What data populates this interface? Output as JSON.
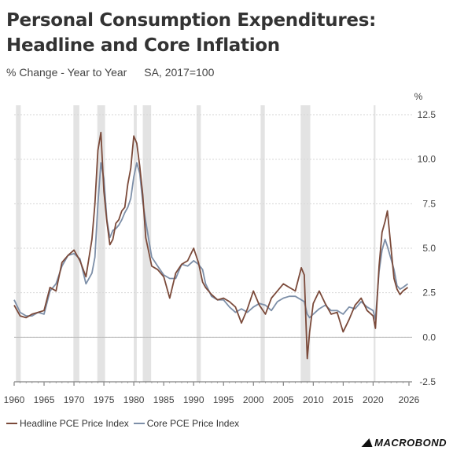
{
  "title": "Personal Consumption Expenditures: Headline and Core Inflation",
  "subtitle": "% Change - Year to Year",
  "subtitle_note": "SA, 2017=100",
  "source_brand": "MACROBOND",
  "chart_data": {
    "type": "line",
    "ylabel": "%",
    "xlim": [
      1960,
      2026
    ],
    "ylim": [
      -2.5,
      12.5
    ],
    "yticks": [
      "-2.5",
      "0.0",
      "2.5",
      "5.0",
      "7.5",
      "10.0",
      "12.5"
    ],
    "xticks": [
      "1960",
      "1965",
      "1970",
      "1975",
      "1980",
      "1985",
      "1990",
      "1995",
      "2000",
      "2005",
      "2010",
      "2015",
      "2020",
      "2026"
    ],
    "recessions": [
      [
        1960.3,
        1961.1
      ],
      [
        1969.9,
        1970.9
      ],
      [
        1973.9,
        1975.2
      ],
      [
        1980.0,
        1980.5
      ],
      [
        1981.5,
        1982.9
      ],
      [
        1990.5,
        1991.2
      ],
      [
        2001.2,
        2001.9
      ],
      [
        2007.9,
        2009.5
      ],
      [
        2020.1,
        2020.4
      ]
    ],
    "series": [
      {
        "name": "Headline PCE Price Index",
        "color": "#7b4a3a",
        "x": [
          1960,
          1961,
          1962,
          1963,
          1964,
          1965,
          1966,
          1967,
          1968,
          1969,
          1970,
          1971,
          1972,
          1973,
          1973.5,
          1974,
          1974.5,
          1975,
          1975.5,
          1976,
          1976.5,
          1977,
          1977.5,
          1978,
          1978.5,
          1979,
          1979.5,
          1980,
          1980.5,
          1981,
          1981.5,
          1982,
          1982.5,
          1983,
          1984,
          1985,
          1986,
          1987,
          1988,
          1989,
          1990,
          1990.8,
          1991.5,
          1992,
          1993,
          1994,
          1995,
          1996,
          1997,
          1998,
          1999,
          2000,
          2001,
          2002,
          2003,
          2004,
          2005,
          2006,
          2007,
          2008,
          2008.5,
          2009,
          2009.4,
          2010,
          2011,
          2012,
          2013,
          2014,
          2015,
          2016,
          2017,
          2018,
          2019,
          2020,
          2020.4,
          2021,
          2021.5,
          2022,
          2022.4,
          2023,
          2023.5,
          2024,
          2024.5,
          2025,
          2025.8
        ],
        "values": [
          1.8,
          1.2,
          1.1,
          1.3,
          1.4,
          1.5,
          2.8,
          2.6,
          4.2,
          4.6,
          4.9,
          4.3,
          3.4,
          5.5,
          7.5,
          10.5,
          11.5,
          8.2,
          6.5,
          5.2,
          5.5,
          6.4,
          6.6,
          7.1,
          7.3,
          8.6,
          9.5,
          11.3,
          10.9,
          9.6,
          8.0,
          5.6,
          4.8,
          4.0,
          3.8,
          3.4,
          2.2,
          3.6,
          4.1,
          4.3,
          5.0,
          4.2,
          3.1,
          2.8,
          2.4,
          2.1,
          2.2,
          2.0,
          1.7,
          0.8,
          1.6,
          2.6,
          1.8,
          1.3,
          2.2,
          2.6,
          3.0,
          2.8,
          2.6,
          3.9,
          3.5,
          -1.2,
          0.3,
          1.9,
          2.6,
          1.9,
          1.3,
          1.4,
          0.3,
          1.0,
          1.8,
          2.2,
          1.5,
          1.2,
          0.5,
          4.0,
          5.9,
          6.5,
          7.1,
          5.0,
          3.3,
          2.7,
          2.4,
          2.6,
          2.8
        ]
      },
      {
        "name": "Core PCE Price Index",
        "color": "#7d8fa8",
        "x": [
          1960,
          1961,
          1962,
          1963,
          1964,
          1965,
          1966,
          1967,
          1968,
          1969,
          1970,
          1971,
          1972,
          1973,
          1973.5,
          1974,
          1974.5,
          1975,
          1975.5,
          1976,
          1976.5,
          1977,
          1977.5,
          1978,
          1978.5,
          1979,
          1979.5,
          1980,
          1980.5,
          1981,
          1981.5,
          1982,
          1982.5,
          1983,
          1984,
          1985,
          1986,
          1987,
          1988,
          1989,
          1990,
          1990.8,
          1991.5,
          1992,
          1993,
          1994,
          1995,
          1996,
          1997,
          1998,
          1999,
          2000,
          2001,
          2002,
          2003,
          2004,
          2005,
          2006,
          2007,
          2008,
          2008.5,
          2009,
          2009.4,
          2010,
          2011,
          2012,
          2013,
          2014,
          2015,
          2016,
          2017,
          2018,
          2019,
          2020,
          2020.4,
          2021,
          2021.5,
          2022,
          2022.4,
          2023,
          2023.5,
          2024,
          2024.5,
          2025,
          2025.8
        ],
        "values": [
          2.1,
          1.4,
          1.2,
          1.2,
          1.4,
          1.3,
          2.6,
          3.0,
          4.0,
          4.6,
          4.7,
          4.4,
          3.0,
          3.6,
          4.5,
          7.5,
          9.8,
          8.9,
          6.6,
          5.6,
          6.0,
          6.1,
          6.3,
          6.6,
          7.0,
          7.3,
          7.8,
          9.0,
          9.8,
          9.2,
          7.6,
          6.5,
          5.5,
          4.5,
          4.0,
          3.5,
          3.3,
          3.3,
          4.1,
          4.0,
          4.3,
          4.1,
          3.8,
          3.0,
          2.3,
          2.1,
          2.1,
          1.7,
          1.4,
          1.6,
          1.4,
          1.7,
          1.9,
          1.8,
          1.5,
          2.0,
          2.2,
          2.3,
          2.3,
          2.1,
          2.0,
          1.3,
          1.1,
          1.3,
          1.6,
          1.8,
          1.5,
          1.5,
          1.3,
          1.7,
          1.6,
          2.0,
          1.7,
          1.5,
          1.0,
          3.7,
          4.9,
          5.5,
          5.1,
          4.4,
          3.8,
          2.9,
          2.7,
          2.8,
          3.0
        ]
      }
    ]
  }
}
